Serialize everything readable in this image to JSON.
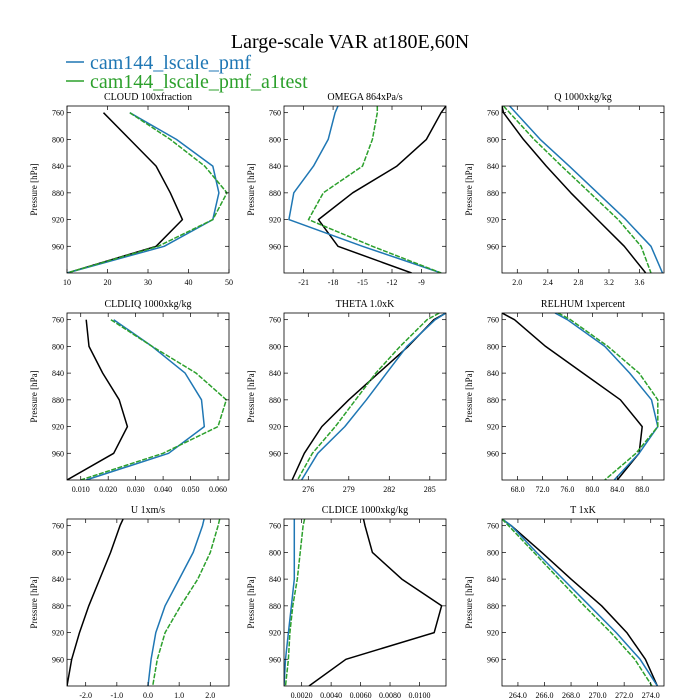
{
  "figure": {
    "title": "Large-scale VAR at180E,60N",
    "legend": [
      {
        "name": "cam144_lscale_pmf",
        "color": "#1f77b4"
      },
      {
        "name": "cam144_lscale_pmf_a1test",
        "color": "#2ca02c"
      }
    ]
  },
  "chart_data": [
    {
      "type": "line",
      "title": "CLOUD  100xfraction",
      "ylabel": "Pressure [hPa]",
      "xlim": [
        10,
        50
      ],
      "ylim": [
        1000,
        750
      ],
      "xticks": [
        10,
        20,
        30,
        40,
        50
      ],
      "xtick_labels": [
        "10",
        "20",
        "30",
        "40",
        "50"
      ],
      "yticks": [
        760,
        800,
        840,
        880,
        920,
        960
      ],
      "grid": false,
      "y": [
        760,
        800,
        840,
        880,
        920,
        960,
        1000
      ],
      "series": [
        {
          "color": "#000000",
          "values": [
            19,
            25.5,
            32,
            35.5,
            38.5,
            32,
            10
          ]
        },
        {
          "color": "#1f77b4",
          "values": [
            25.5,
            37,
            46,
            47.5,
            46,
            34,
            10
          ]
        },
        {
          "color": "#2ca02c",
          "values": [
            25.5,
            35.5,
            44,
            49.5,
            46,
            32.5,
            10
          ]
        }
      ]
    },
    {
      "type": "line",
      "title": "OMEGA  864xPa/s",
      "ylabel": "Pressure [hPa]",
      "xlim": [
        -23,
        -6.5
      ],
      "ylim": [
        1000,
        750
      ],
      "xticks": [
        -21,
        -18,
        -15,
        -12,
        -9
      ],
      "xtick_labels": [
        "-21",
        "-18",
        "-15",
        "-12",
        "-9"
      ],
      "yticks": [
        760,
        800,
        840,
        880,
        920,
        960
      ],
      "grid": false,
      "y": [
        750,
        760,
        800,
        840,
        880,
        920,
        960,
        1000
      ],
      "series": [
        {
          "color": "#000000",
          "values": [
            -6.5,
            -7,
            -8.5,
            -11.5,
            -16,
            -19.5,
            -17.5,
            -10
          ]
        },
        {
          "color": "#1f77b4",
          "values": [
            -17.5,
            -17.8,
            -18.5,
            -20,
            -22,
            -22.5,
            -15,
            -7
          ]
        },
        {
          "color": "#2ca02c",
          "values": [
            -13.5,
            -13.5,
            -14,
            -15,
            -19,
            -20.5,
            -14,
            -7
          ]
        }
      ]
    },
    {
      "type": "line",
      "title": "Q  1000xkg/kg",
      "ylabel": "Pressure [hPa]",
      "xlim": [
        1.8,
        3.92
      ],
      "ylim": [
        1000,
        750
      ],
      "xticks": [
        2.0,
        2.4,
        2.8,
        3.2,
        3.6
      ],
      "xtick_labels": [
        "2.0",
        "2.4",
        "2.8",
        "3.2",
        "3.6"
      ],
      "yticks": [
        760,
        800,
        840,
        880,
        920,
        960
      ],
      "grid": false,
      "y": [
        750,
        760,
        800,
        840,
        880,
        920,
        960,
        1000
      ],
      "series": [
        {
          "color": "#000000",
          "values": [
            1.8,
            1.82,
            2.08,
            2.38,
            2.7,
            3.05,
            3.4,
            3.68
          ]
        },
        {
          "color": "#1f77b4",
          "values": [
            1.9,
            1.98,
            2.3,
            2.68,
            3.05,
            3.42,
            3.75,
            3.9
          ]
        },
        {
          "color": "#2ca02c",
          "values": [
            1.82,
            1.9,
            2.22,
            2.58,
            2.95,
            3.32,
            3.62,
            3.75
          ]
        }
      ]
    },
    {
      "type": "line",
      "title": "CLDLIQ  1000xkg/kg",
      "ylabel": "Pressure [hPa]",
      "xlim": [
        0.005,
        0.064
      ],
      "ylim": [
        1000,
        750
      ],
      "xticks": [
        0.01,
        0.02,
        0.03,
        0.04,
        0.05,
        0.06
      ],
      "xtick_labels": [
        "0.010",
        "0.020",
        "0.030",
        "0.040",
        "0.050",
        "0.060"
      ],
      "yticks": [
        760,
        800,
        840,
        880,
        920,
        960
      ],
      "grid": false,
      "y": [
        760,
        800,
        840,
        880,
        920,
        960,
        1000
      ],
      "series": [
        {
          "color": "#000000",
          "values": [
            0.012,
            0.013,
            0.018,
            0.024,
            0.027,
            0.022,
            0.005
          ]
        },
        {
          "color": "#1f77b4",
          "values": [
            0.022,
            0.036,
            0.048,
            0.054,
            0.055,
            0.042,
            0.012
          ]
        },
        {
          "color": "#2ca02c",
          "values": [
            0.021,
            0.036,
            0.052,
            0.063,
            0.06,
            0.04,
            0.01
          ]
        }
      ]
    },
    {
      "type": "line",
      "title": "THETA  1.0xK",
      "ylabel": "Pressure [hPa]",
      "xlim": [
        274.2,
        286.2
      ],
      "ylim": [
        1000,
        750
      ],
      "xticks": [
        276,
        279,
        282,
        285
      ],
      "xtick_labels": [
        "276",
        "279",
        "282",
        "285"
      ],
      "yticks": [
        760,
        800,
        840,
        880,
        920,
        960
      ],
      "grid": false,
      "y": [
        750,
        760,
        800,
        840,
        880,
        920,
        960,
        1000
      ],
      "series": [
        {
          "color": "#000000",
          "values": [
            286.2,
            285.3,
            283.4,
            281.2,
            279,
            277,
            275.7,
            274.8
          ]
        },
        {
          "color": "#1f77b4",
          "values": [
            286.2,
            285.4,
            283.3,
            281.8,
            280.3,
            278.7,
            276.7,
            275.5
          ]
        },
        {
          "color": "#2ca02c",
          "values": [
            285.7,
            284.8,
            282.8,
            281,
            279.5,
            278,
            276.3,
            275.2
          ]
        }
      ]
    },
    {
      "type": "line",
      "title": "RELHUM  1xpercent",
      "ylabel": "Pressure [hPa]",
      "xlim": [
        65.5,
        91.5
      ],
      "ylim": [
        1000,
        750
      ],
      "xticks": [
        68,
        72,
        76,
        80,
        84,
        88
      ],
      "xtick_labels": [
        "68.0",
        "72.0",
        "76.0",
        "80.0",
        "84.0",
        "88.0"
      ],
      "yticks": [
        760,
        800,
        840,
        880,
        920,
        960
      ],
      "grid": false,
      "y": [
        750,
        760,
        800,
        840,
        880,
        920,
        960,
        1000
      ],
      "series": [
        {
          "color": "#000000",
          "values": [
            65.5,
            67.5,
            72.5,
            78.5,
            84.5,
            88,
            87.5,
            84
          ]
        },
        {
          "color": "#1f77b4",
          "values": [
            74,
            76,
            82,
            86,
            89.5,
            90.5,
            87.5,
            83.5
          ]
        },
        {
          "color": "#2ca02c",
          "values": [
            74.5,
            76.5,
            82.5,
            87.5,
            90.5,
            90.5,
            87,
            82
          ]
        }
      ]
    },
    {
      "type": "line",
      "title": "U  1xm/s",
      "ylabel": "Pressure [hPa]",
      "xlim": [
        -2.6,
        2.6
      ],
      "ylim": [
        1000,
        750
      ],
      "xticks": [
        -2,
        -1,
        0,
        1,
        2
      ],
      "xtick_labels": [
        "-2.0",
        "-1.0",
        "0.0",
        "1.0",
        "2.0"
      ],
      "yticks": [
        760,
        800,
        840,
        880,
        920,
        960
      ],
      "grid": false,
      "y": [
        750,
        760,
        800,
        840,
        880,
        920,
        960,
        1000
      ],
      "series": [
        {
          "color": "#000000",
          "values": [
            -0.8,
            -0.9,
            -1.2,
            -1.55,
            -1.9,
            -2.2,
            -2.45,
            -2.6
          ]
        },
        {
          "color": "#1f77b4",
          "values": [
            1.8,
            1.75,
            1.45,
            1.0,
            0.55,
            0.25,
            0.1,
            0
          ]
        },
        {
          "color": "#2ca02c",
          "values": [
            2.3,
            2.25,
            2.0,
            1.6,
            1.05,
            0.55,
            0.3,
            0.15
          ]
        }
      ]
    },
    {
      "type": "line",
      "title": "CLDICE  1000xkg/kg",
      "ylabel": "Pressure [hPa]",
      "xlim": [
        0.0008,
        0.0118
      ],
      "ylim": [
        1000,
        750
      ],
      "xticks": [
        0.002,
        0.004,
        0.006,
        0.008,
        0.01
      ],
      "xtick_labels": [
        "0.0020",
        "0.0040",
        "0.0060",
        "0.0080",
        "0.0100"
      ],
      "yticks": [
        760,
        800,
        840,
        880,
        920,
        960
      ],
      "grid": false,
      "y": [
        750,
        760,
        800,
        840,
        880,
        920,
        960,
        1000
      ],
      "series": [
        {
          "color": "#000000",
          "values": [
            0.0062,
            0.0063,
            0.0068,
            0.0088,
            0.0115,
            0.011,
            0.005,
            0.0025
          ]
        },
        {
          "color": "#1f77b4",
          "values": [
            0.0015,
            0.0015,
            0.0015,
            0.0015,
            0.0013,
            0.0011,
            0.0009,
            0.0008
          ]
        },
        {
          "color": "#2ca02c",
          "values": [
            0.0022,
            0.0021,
            0.0019,
            0.0017,
            0.0014,
            0.0012,
            0.0011,
            0.0009
          ]
        }
      ]
    },
    {
      "type": "line",
      "title": "T  1xK",
      "ylabel": "Pressure [hPa]",
      "xlim": [
        262.8,
        275
      ],
      "ylim": [
        1000,
        750
      ],
      "xticks": [
        264,
        266,
        268,
        270,
        272,
        274
      ],
      "xtick_labels": [
        "264.0",
        "266.0",
        "268.0",
        "270.0",
        "272.0",
        "274.0"
      ],
      "yticks": [
        760,
        800,
        840,
        880,
        920,
        960
      ],
      "grid": false,
      "y": [
        750,
        760,
        800,
        840,
        880,
        920,
        960,
        1000
      ],
      "series": [
        {
          "color": "#000000",
          "values": [
            262.8,
            263.5,
            265.8,
            268.0,
            270.3,
            272.2,
            273.6,
            274.5
          ]
        },
        {
          "color": "#1f77b4",
          "values": [
            262.8,
            263.5,
            265.4,
            267.4,
            269.4,
            271.4,
            273.2,
            274.5
          ]
        },
        {
          "color": "#2ca02c",
          "values": [
            262.8,
            263.3,
            265.2,
            267.1,
            269.0,
            271.0,
            272.8,
            274.1
          ]
        }
      ]
    }
  ]
}
